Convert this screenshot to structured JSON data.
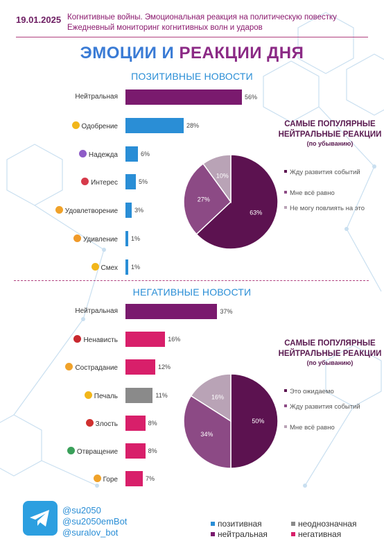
{
  "header": {
    "date": "19.01.2025",
    "line1": "Когнитивные войны. Эмоциональная реакция на политическую повестку",
    "line2": "Ежедневный мониторинг когнитивных волн и ударов"
  },
  "title": {
    "part1": "ЭМОЦИИ И ",
    "part2": "РЕАКЦИИ ДНЯ"
  },
  "colors": {
    "positive": "#2a8ed6",
    "neutral": "#7a1a6e",
    "ambiguous": "#8a8a8a",
    "negative": "#d81f6a",
    "pie_dark": "#5c1250",
    "pie_mid": "#8c4a85",
    "pie_light": "#b9a3b6"
  },
  "chart_data": [
    {
      "type": "bar",
      "title": "ПОЗИТИВНЫЕ НОВОСТИ",
      "categories": [
        "Нейтральная",
        "Одобрение",
        "Надежда",
        "Интерес",
        "Удовлетворение",
        "Удивление",
        "Смех"
      ],
      "values": [
        56,
        28,
        6,
        5,
        3,
        1,
        1
      ],
      "value_labels": [
        "56%",
        "28%",
        "6%",
        "5%",
        "3%",
        "1%",
        "1%"
      ],
      "bar_colors": [
        "#7a1a6e",
        "#2a8ed6",
        "#2a8ed6",
        "#2a8ed6",
        "#2a8ed6",
        "#2a8ed6",
        "#2a8ed6"
      ],
      "emoji_colors": [
        "",
        "#f2b61a",
        "#8e5cc7",
        "#d63a4a",
        "#f0a22a",
        "#f09a2a",
        "#f2b61a"
      ],
      "xlim": [
        0,
        100
      ]
    },
    {
      "type": "pie",
      "title": "САМЫЕ ПОПУЛЯРНЫЕ НЕЙТРАЛЬНЫЕ РЕАКЦИИ",
      "subtitle": "(по убыванию)",
      "labels": [
        "Жду развития событий",
        "Мне всё равно",
        "Не могу повлиять на это"
      ],
      "values": [
        63,
        27,
        10
      ],
      "value_labels": [
        "63%",
        "27%",
        "10%"
      ],
      "colors": [
        "#5c1250",
        "#8c4a85",
        "#b9a3b6"
      ]
    },
    {
      "type": "bar",
      "title": "НЕГАТИВНЫЕ НОВОСТИ",
      "categories": [
        "Нейтральная",
        "Ненависть",
        "Сострадание",
        "Печаль",
        "Злость",
        "Отвращение",
        "Горе"
      ],
      "values": [
        37,
        16,
        12,
        11,
        8,
        8,
        7
      ],
      "value_labels": [
        "37%",
        "16%",
        "12%",
        "11%",
        "8%",
        "8%",
        "7%"
      ],
      "bar_colors": [
        "#7a1a6e",
        "#d81f6a",
        "#d81f6a",
        "#8a8a8a",
        "#d81f6a",
        "#d81f6a",
        "#d81f6a"
      ],
      "emoji_colors": [
        "",
        "#c8282f",
        "#f0a22a",
        "#f2b61a",
        "#d0302f",
        "#3aa05a",
        "#f0a22a"
      ],
      "xlim": [
        0,
        100
      ]
    },
    {
      "type": "pie",
      "title": "САМЫЕ ПОПУЛЯРНЫЕ НЕЙТРАЛЬНЫЕ РЕАКЦИИ",
      "subtitle": "(по убыванию)",
      "labels": [
        "Это ожидаемо",
        "Жду развития событий",
        "Мне всё равно"
      ],
      "values": [
        50,
        34,
        16
      ],
      "value_labels": [
        "50%",
        "34%",
        "16%"
      ],
      "colors": [
        "#5c1250",
        "#8c4a85",
        "#b9a3b6"
      ]
    }
  ],
  "footer": {
    "handles": [
      "@su2050",
      "@su2050emBot",
      "@suralov_bot"
    ],
    "telegram_icon": "telegram-icon",
    "legend": [
      "позитивная",
      "неоднозначная",
      "нейтральная",
      "негативная"
    ]
  }
}
